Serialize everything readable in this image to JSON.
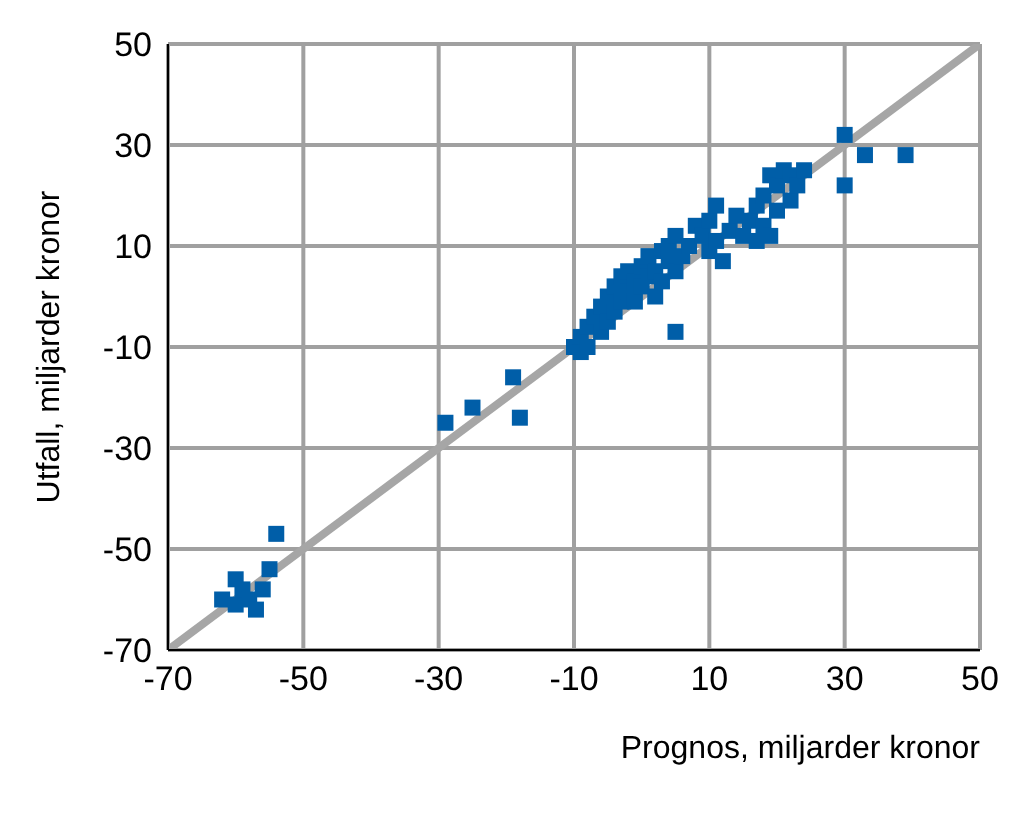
{
  "chart_data": {
    "type": "scatter",
    "xlabel": "Prognos, miljarder kronor",
    "ylabel": "Utfall, miljarder kronor",
    "xlim": [
      -70,
      50
    ],
    "ylim": [
      -70,
      50
    ],
    "xticks": [
      -70,
      -50,
      -30,
      -10,
      10,
      30,
      50
    ],
    "yticks": [
      -70,
      -50,
      -30,
      -10,
      10,
      30,
      50
    ],
    "grid": true,
    "series": [
      {
        "type": "line",
        "color": "#a6a6a6",
        "x": [
          -70,
          50
        ],
        "values": [
          -70,
          50
        ]
      },
      {
        "color": "#005ea8",
        "marker": "square",
        "x": [
          -62,
          -60,
          -60,
          -59,
          -58,
          -57,
          -56,
          -55,
          -54,
          -29,
          -25,
          -19,
          -18,
          -10,
          -9,
          -9,
          -8,
          -8,
          -7,
          -6,
          -6,
          -5,
          -5,
          -4,
          -4,
          -3,
          -3,
          -2,
          -2,
          -1,
          -1,
          0,
          0,
          1,
          1,
          2,
          2,
          3,
          3,
          4,
          4,
          5,
          5,
          5,
          6,
          7,
          8,
          9,
          10,
          10,
          11,
          11,
          12,
          13,
          14,
          15,
          16,
          17,
          17,
          18,
          18,
          19,
          19,
          20,
          20,
          21,
          22,
          22,
          23,
          24,
          30,
          30,
          33,
          39
        ],
        "values": [
          -60,
          -56,
          -61,
          -58,
          -60,
          -62,
          -58,
          -54,
          -47,
          -25,
          -22,
          -16,
          -24,
          -10,
          -11,
          -8,
          -6,
          -10,
          -4,
          -7,
          -2,
          -5,
          0,
          -3,
          2,
          -1,
          4,
          1,
          5,
          3,
          -1,
          6,
          2,
          4,
          8,
          5,
          0,
          9,
          3,
          7,
          10,
          12,
          5,
          -7,
          8,
          10,
          14,
          12,
          15,
          9,
          11,
          18,
          7,
          13,
          16,
          12,
          15,
          11,
          18,
          14,
          20,
          12,
          24,
          17,
          22,
          25,
          19,
          24,
          22,
          25,
          32,
          22,
          28,
          28
        ]
      }
    ]
  }
}
